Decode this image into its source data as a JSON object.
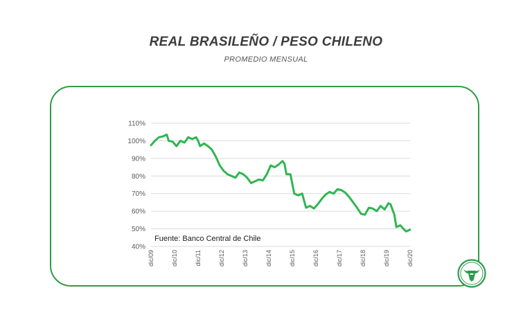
{
  "header": {
    "title": "REAL BRASILEÑO / PESO CHILENO",
    "subtitle": "PROMEDIO MENSUAL"
  },
  "source_label": "Fuente: Banco Central de Chile",
  "logo_icon": "bull-head-logo-icon",
  "colors": {
    "line": "#2fb552",
    "frame": "#2e9b4a",
    "grid": "#d9d9d9",
    "text": "#595959"
  },
  "chart_data": {
    "type": "line",
    "title": "",
    "xlabel": "",
    "ylabel": "",
    "ylim": [
      40,
      110
    ],
    "y_ticks": [
      "40%",
      "50%",
      "60%",
      "70%",
      "80%",
      "90%",
      "100%",
      "110%"
    ],
    "x_ticks": [
      "dic/09",
      "dic/10",
      "dic/11",
      "dic/12",
      "dic/13",
      "dic/14",
      "dic/15",
      "dic/16",
      "dic/17",
      "dic/18",
      "dic/19",
      "dic/20"
    ],
    "x_range": [
      0,
      132
    ],
    "grid": true,
    "legend": "none",
    "series": [
      {
        "points": [
          [
            0,
            97.5
          ],
          [
            2,
            100
          ],
          [
            4,
            102
          ],
          [
            6,
            102.5
          ],
          [
            8,
            103.5
          ],
          [
            9,
            100
          ],
          [
            11,
            99.5
          ],
          [
            13,
            97
          ],
          [
            15,
            100
          ],
          [
            17,
            99
          ],
          [
            19,
            102
          ],
          [
            21,
            101
          ],
          [
            23,
            102
          ],
          [
            24,
            100
          ],
          [
            25,
            97
          ],
          [
            27,
            98.5
          ],
          [
            29,
            97
          ],
          [
            31,
            95
          ],
          [
            33,
            91
          ],
          [
            35,
            86
          ],
          [
            37,
            83
          ],
          [
            39,
            81
          ],
          [
            41,
            80
          ],
          [
            43,
            79
          ],
          [
            45,
            82
          ],
          [
            47,
            81
          ],
          [
            49,
            79
          ],
          [
            51,
            76
          ],
          [
            53,
            77
          ],
          [
            55,
            78
          ],
          [
            57,
            77.5
          ],
          [
            59,
            81
          ],
          [
            61,
            86
          ],
          [
            63,
            85
          ],
          [
            65,
            86.5
          ],
          [
            67,
            88.5
          ],
          [
            68,
            87
          ],
          [
            69,
            81
          ],
          [
            71,
            81
          ],
          [
            73,
            70
          ],
          [
            75,
            69
          ],
          [
            77,
            70
          ],
          [
            79,
            62
          ],
          [
            81,
            63
          ],
          [
            83,
            61.5
          ],
          [
            85,
            64
          ],
          [
            87,
            67
          ],
          [
            89,
            69.5
          ],
          [
            91,
            71
          ],
          [
            93,
            70
          ],
          [
            95,
            72.5
          ],
          [
            97,
            72
          ],
          [
            99,
            70.5
          ],
          [
            101,
            68
          ],
          [
            103,
            65
          ],
          [
            105,
            62
          ],
          [
            107,
            58.5
          ],
          [
            109,
            58
          ],
          [
            111,
            62
          ],
          [
            113,
            61.5
          ],
          [
            115,
            60
          ],
          [
            117,
            63
          ],
          [
            119,
            61
          ],
          [
            121,
            64.5
          ],
          [
            122,
            64
          ],
          [
            124,
            58
          ],
          [
            125,
            51
          ],
          [
            127,
            52
          ],
          [
            129,
            49.5
          ],
          [
            130,
            48.5
          ],
          [
            131,
            49
          ],
          [
            132,
            49.5
          ]
        ]
      }
    ]
  }
}
